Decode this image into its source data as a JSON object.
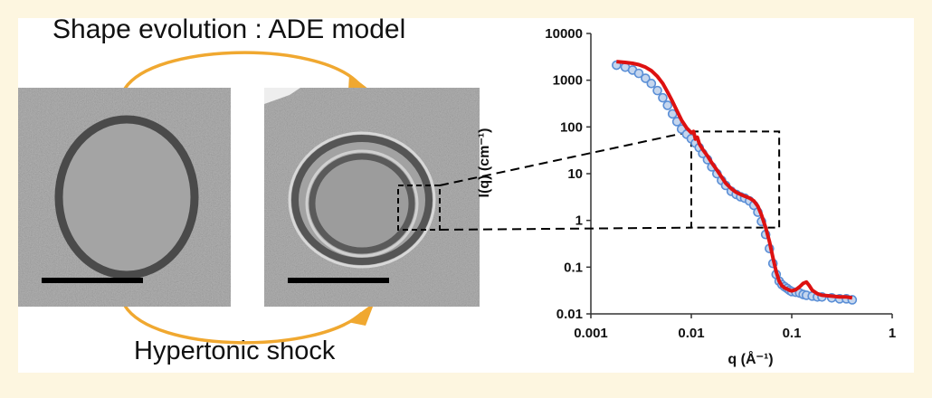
{
  "figure": {
    "top_caption": "Shape evolution : ADE model",
    "bottom_caption": "Hypertonic shock"
  },
  "colors": {
    "page_background": "#fdf6e0",
    "arrow": "#f0a830",
    "fit_line": "#dd1111",
    "data_markers": "#5b8fd6",
    "micrograph_gray": "#9a9a9a"
  },
  "micrographs": [
    {
      "name": "vesicle-before",
      "structure": "single-wall vesicle",
      "has_scale_bar": true
    },
    {
      "name": "vesicle-after",
      "structure": "double-wall vesicle",
      "has_scale_bar": true,
      "zoom_box": true
    }
  ],
  "chart_data": {
    "type": "scatter",
    "xscale": "log",
    "yscale": "log",
    "xlim": [
      0.001,
      1
    ],
    "ylim": [
      0.01,
      10000
    ],
    "xlabel": "q (Å⁻¹)",
    "ylabel": "I(q) (cm⁻¹)",
    "x_ticks": [
      "0.001",
      "0.01",
      "0.1",
      "1"
    ],
    "y_ticks": [
      "0.01",
      "0.1",
      "1",
      "10",
      "100",
      "1000",
      "10000"
    ],
    "grid": false,
    "series": [
      {
        "kind": "markers",
        "x": [
          0.0018,
          0.0022,
          0.0026,
          0.003,
          0.0035,
          0.004,
          0.0046,
          0.0052,
          0.0058,
          0.0065,
          0.0072,
          0.008,
          0.009,
          0.01,
          0.011,
          0.012,
          0.013,
          0.0145,
          0.016,
          0.018,
          0.02,
          0.022,
          0.025,
          0.028,
          0.031,
          0.034,
          0.038,
          0.042,
          0.046,
          0.05,
          0.055,
          0.06,
          0.065,
          0.07,
          0.075,
          0.08,
          0.085,
          0.09,
          0.095,
          0.1,
          0.11,
          0.12,
          0.13,
          0.14,
          0.16,
          0.18,
          0.2,
          0.25,
          0.3,
          0.35,
          0.4
        ],
        "y": [
          2100,
          1900,
          1650,
          1400,
          1100,
          850,
          600,
          420,
          290,
          190,
          130,
          90,
          70,
          56,
          45,
          36,
          27,
          20,
          14,
          10,
          7.2,
          5.6,
          4.2,
          3.6,
          3.2,
          3.0,
          2.6,
          2.1,
          1.5,
          0.95,
          0.5,
          0.25,
          0.12,
          0.07,
          0.05,
          0.042,
          0.038,
          0.035,
          0.032,
          0.03,
          0.029,
          0.028,
          0.026,
          0.025,
          0.024,
          0.023,
          0.023,
          0.022,
          0.021,
          0.021,
          0.02
        ]
      },
      {
        "kind": "line",
        "x": [
          0.0018,
          0.0022,
          0.0026,
          0.003,
          0.0035,
          0.004,
          0.0046,
          0.0052,
          0.0058,
          0.0065,
          0.0072,
          0.008,
          0.009,
          0.01,
          0.0105,
          0.011,
          0.0115,
          0.012,
          0.013,
          0.0145,
          0.016,
          0.018,
          0.02,
          0.022,
          0.025,
          0.028,
          0.031,
          0.034,
          0.038,
          0.042,
          0.046,
          0.05,
          0.055,
          0.06,
          0.065,
          0.07,
          0.075,
          0.08,
          0.085,
          0.09,
          0.095,
          0.1,
          0.11,
          0.12,
          0.13,
          0.14,
          0.15,
          0.16,
          0.18,
          0.2,
          0.25,
          0.3,
          0.35,
          0.4
        ],
        "y": [
          2500,
          2400,
          2300,
          2150,
          1900,
          1600,
          1200,
          850,
          560,
          350,
          220,
          140,
          95,
          75,
          80,
          55,
          60,
          44,
          33,
          24,
          17,
          12,
          8.5,
          6.3,
          4.8,
          4.0,
          3.6,
          3.3,
          3.0,
          2.6,
          2.0,
          1.3,
          0.7,
          0.35,
          0.16,
          0.08,
          0.05,
          0.04,
          0.036,
          0.034,
          0.032,
          0.031,
          0.033,
          0.038,
          0.045,
          0.048,
          0.04,
          0.032,
          0.027,
          0.025,
          0.024,
          0.023,
          0.023,
          0.022
        ]
      }
    ],
    "zoom_box": {
      "q_range": [
        0.01,
        0.075
      ],
      "I_range": [
        0.7,
        80
      ]
    }
  }
}
